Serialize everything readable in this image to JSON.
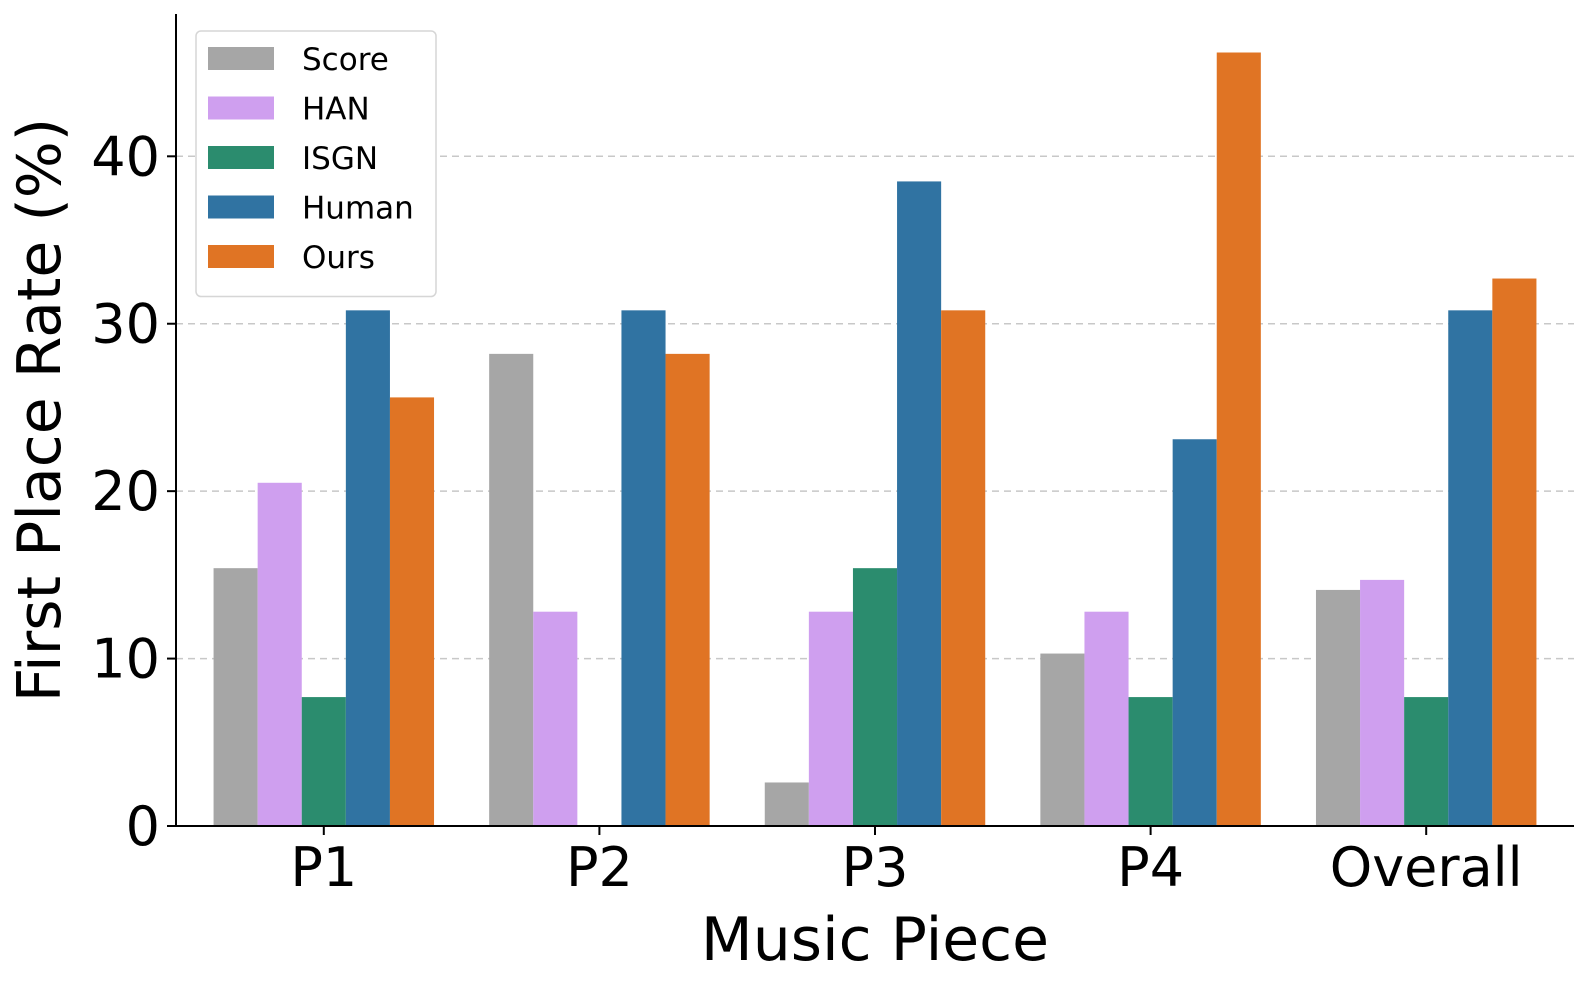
{
  "chart_data": {
    "type": "bar",
    "title": "",
    "xlabel": "Music Piece",
    "ylabel": "First Place Rate (%)",
    "categories": [
      "P1",
      "P2",
      "P3",
      "P4",
      "Overall"
    ],
    "ylim": [
      0,
      48.5
    ],
    "yticks": [
      0,
      10,
      20,
      30,
      40
    ],
    "grid": "horizontal dashed",
    "legend_position": "top-left",
    "series": [
      {
        "name": "Score",
        "color": "#a6a6a6",
        "values": [
          15.4,
          28.2,
          2.6,
          10.3,
          14.1
        ]
      },
      {
        "name": "HAN",
        "color": "#cf9fef",
        "values": [
          20.5,
          12.8,
          12.8,
          12.8,
          14.7
        ]
      },
      {
        "name": "ISGN",
        "color": "#2b8c6e",
        "values": [
          7.7,
          0.0,
          15.4,
          7.7,
          7.7
        ]
      },
      {
        "name": "Human",
        "color": "#3073a2",
        "values": [
          30.8,
          30.8,
          38.5,
          23.1,
          30.8
        ]
      },
      {
        "name": "Ours",
        "color": "#e07424",
        "values": [
          25.6,
          28.2,
          30.8,
          46.2,
          32.7
        ]
      }
    ]
  }
}
